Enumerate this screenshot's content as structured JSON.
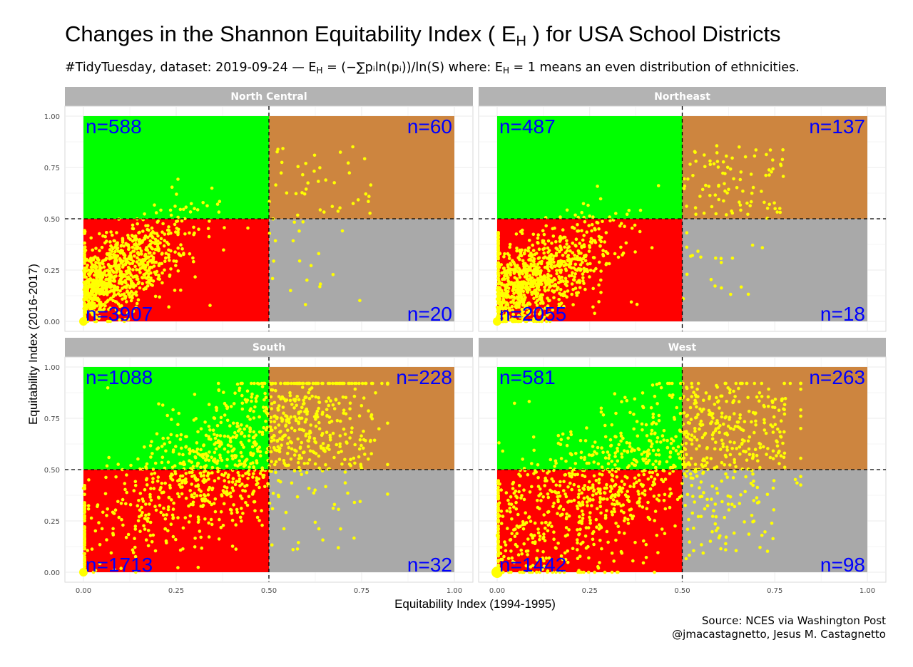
{
  "title": {
    "main_prefix": "Changes in the Shannon Equitability Index (",
    "symbol": "E",
    "symbol_sub": "H",
    "main_suffix": ") for USA School Districts"
  },
  "subtitle": {
    "prefix": "#TidyTuesday, dataset: 2019-09-24 — ",
    "formula_lhs": "E",
    "formula_lhs_sub": "H",
    "formula_rhs": " = (−∑pᵢln(pᵢ))/ln(S)",
    "where": " where:  ",
    "even_lhs": "E",
    "even_lhs_sub": "H",
    "even_rhs": " = 1",
    "suffix": " means an even distribution of ethnicities."
  },
  "caption": {
    "line1": "Source: NCES via Washington Post",
    "line2": "@jmacastagnetto, Jesus M. Castagnetto"
  },
  "colors": {
    "quadrant_top_left": "#00ff00",
    "quadrant_top_right": "#cd853f",
    "quadrant_bottom_left": "#ff0000",
    "quadrant_bottom_right": "#a9a9a9",
    "points": "#ffff00",
    "count_labels": "#0000ff",
    "strip": "#b3b3b3"
  },
  "chart_data": {
    "type": "scatter",
    "xlabel": "Equitability Index (1994-1995)",
    "ylabel": "Equitability Index (2016-2017)",
    "xlim": [
      0,
      1
    ],
    "ylim": [
      0,
      1
    ],
    "x_ticks": [
      "0.00",
      "0.25",
      "0.50",
      "0.75",
      "1.00"
    ],
    "y_ticks": [
      "0.00",
      "0.25",
      "0.50",
      "0.75",
      "1.00"
    ],
    "reference_lines": {
      "x": 0.5,
      "y": 0.5,
      "style": "dashed"
    },
    "grid": true,
    "facets": [
      {
        "name": "North Central",
        "counts": {
          "top_left": "n=588",
          "top_right": "n=60",
          "bottom_left": "n=3907",
          "bottom_right": "n=20"
        },
        "density": {
          "cluster_x": 0.06,
          "cluster_y": 0.2,
          "spread": 0.13
        }
      },
      {
        "name": "Northeast",
        "counts": {
          "top_left": "n=487",
          "top_right": "n=137",
          "bottom_left": "n=2055",
          "bottom_right": "n=18"
        },
        "density": {
          "cluster_x": 0.05,
          "cluster_y": 0.15,
          "spread": 0.15
        }
      },
      {
        "name": "South",
        "counts": {
          "top_left": "n=1088",
          "top_right": "n=228",
          "bottom_left": "n=1713",
          "bottom_right": "n=32"
        },
        "density": {
          "cluster_x": 0.38,
          "cluster_y": 0.55,
          "spread": 0.2
        }
      },
      {
        "name": "West",
        "counts": {
          "top_left": "n=581",
          "top_right": "n=263",
          "bottom_left": "n=1442",
          "bottom_right": "n=98"
        },
        "density": {
          "cluster_x": 0.3,
          "cluster_y": 0.42,
          "spread": 0.25
        }
      }
    ]
  }
}
